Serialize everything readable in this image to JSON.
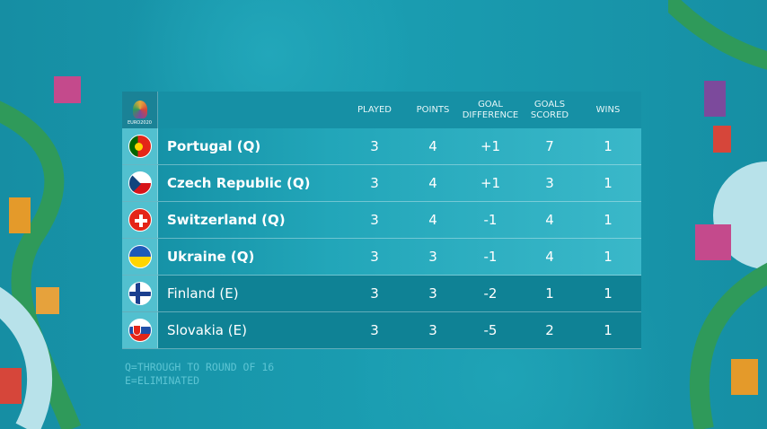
{
  "logo": {
    "text": "EURO2020"
  },
  "headers": {
    "played": "PLAYED",
    "points": "POINTS",
    "gd1": "GOAL",
    "gd2": "DIFFERENCE",
    "gs1": "GOALS",
    "gs2": "SCORED",
    "wins": "WINS"
  },
  "rows": [
    {
      "team": "Portugal (Q)",
      "played": "3",
      "points": "4",
      "gd": "+1",
      "gs": "7",
      "wins": "1",
      "status": "qualified",
      "flag": "portugal"
    },
    {
      "team": "Czech Republic (Q)",
      "played": "3",
      "points": "4",
      "gd": "+1",
      "gs": "3",
      "wins": "1",
      "status": "qualified",
      "flag": "czech-republic"
    },
    {
      "team": "Switzerland (Q)",
      "played": "3",
      "points": "4",
      "gd": "-1",
      "gs": "4",
      "wins": "1",
      "status": "qualified",
      "flag": "switzerland"
    },
    {
      "team": "Ukraine (Q)",
      "played": "3",
      "points": "3",
      "gd": "-1",
      "gs": "4",
      "wins": "1",
      "status": "qualified",
      "flag": "ukraine"
    },
    {
      "team": "Finland (E)",
      "played": "3",
      "points": "3",
      "gd": "-2",
      "gs": "1",
      "wins": "1",
      "status": "eliminated",
      "flag": "finland"
    },
    {
      "team": "Slovakia (E)",
      "played": "3",
      "points": "3",
      "gd": "-5",
      "gs": "2",
      "wins": "1",
      "status": "eliminated",
      "flag": "slovakia"
    }
  ],
  "legend": {
    "q": "Q=THROUGH TO ROUND OF 16",
    "e": "E=ELIMINATED"
  }
}
